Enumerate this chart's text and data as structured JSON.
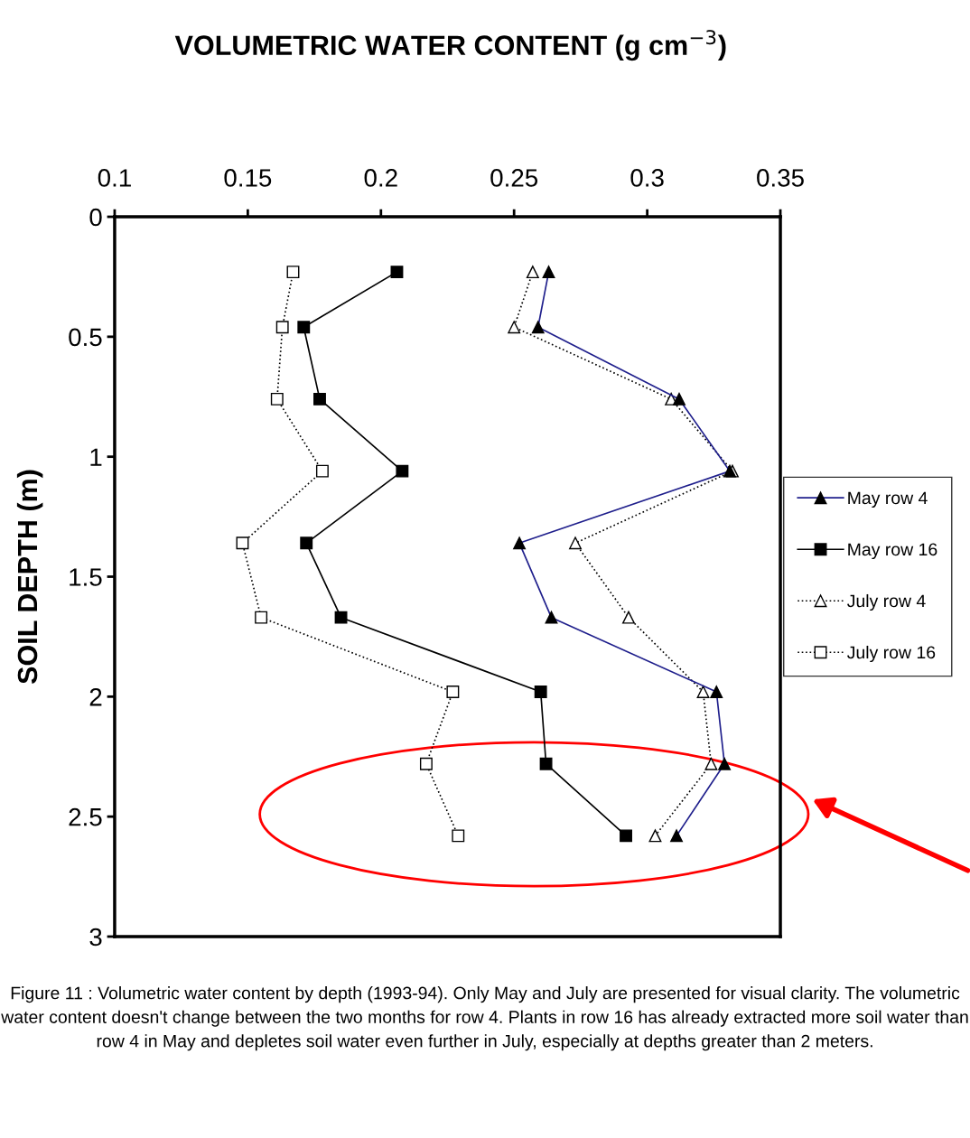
{
  "chart_data": {
    "type": "line",
    "title": "VOLUMETRIC WATER CONTENT (g cm$^{−3}$)",
    "ylabel": "SOIL DEPTH (m)",
    "xlim": [
      0.1,
      0.35
    ],
    "xticks": [
      0.1,
      0.15,
      0.2,
      0.25,
      0.3,
      0.35
    ],
    "ylim": [
      3,
      0
    ],
    "yticks": [
      0,
      0.5,
      1,
      1.5,
      2,
      2.5,
      3
    ],
    "grid": false,
    "legend": "right",
    "series": [
      {
        "name": "May row 4",
        "color": "#1f1f8c",
        "marker": "triangle",
        "line_style": "solid",
        "x": [
          0.263,
          0.259,
          0.312,
          0.331,
          0.252,
          0.264,
          0.326,
          0.329,
          0.311
        ],
        "values": [
          0.23,
          0.46,
          0.76,
          1.06,
          1.36,
          1.67,
          1.98,
          2.28,
          2.58
        ]
      },
      {
        "name": "May row 16",
        "color": "#000000",
        "marker": "square",
        "line_style": "solid",
        "x": [
          0.206,
          0.171,
          0.177,
          0.208,
          0.172,
          0.185,
          0.26,
          0.262,
          0.292
        ],
        "values": [
          0.23,
          0.46,
          0.76,
          1.06,
          1.36,
          1.67,
          1.98,
          2.28,
          2.58
        ]
      },
      {
        "name": "July row 4",
        "color": "#000000",
        "marker": "triangle",
        "line_style": "dotted",
        "x": [
          0.257,
          0.25,
          0.309,
          0.332,
          0.273,
          0.293,
          0.321,
          0.324,
          0.303
        ],
        "values": [
          0.23,
          0.46,
          0.76,
          1.06,
          1.36,
          1.67,
          1.98,
          2.28,
          2.58
        ]
      },
      {
        "name": "July row 16",
        "color": "#000000",
        "marker": "square",
        "line_style": "dotted",
        "x": [
          0.167,
          0.163,
          0.161,
          0.178,
          0.148,
          0.155,
          0.227,
          0.217,
          0.229
        ],
        "values": [
          0.23,
          0.46,
          0.76,
          1.06,
          1.36,
          1.67,
          1.98,
          2.28,
          2.58
        ]
      }
    ],
    "annotations": [
      "Figure 11 : Volumetric water content by depth (1993-94). Only May and July are presented for visual clarity. The volumetric water content doesn't change between the two months for row 4. Plants in row 16 has already extracted more soil water than row 4 in May and depletes soil water even further in July, especially at depths greater than 2 meters."
    ]
  }
}
